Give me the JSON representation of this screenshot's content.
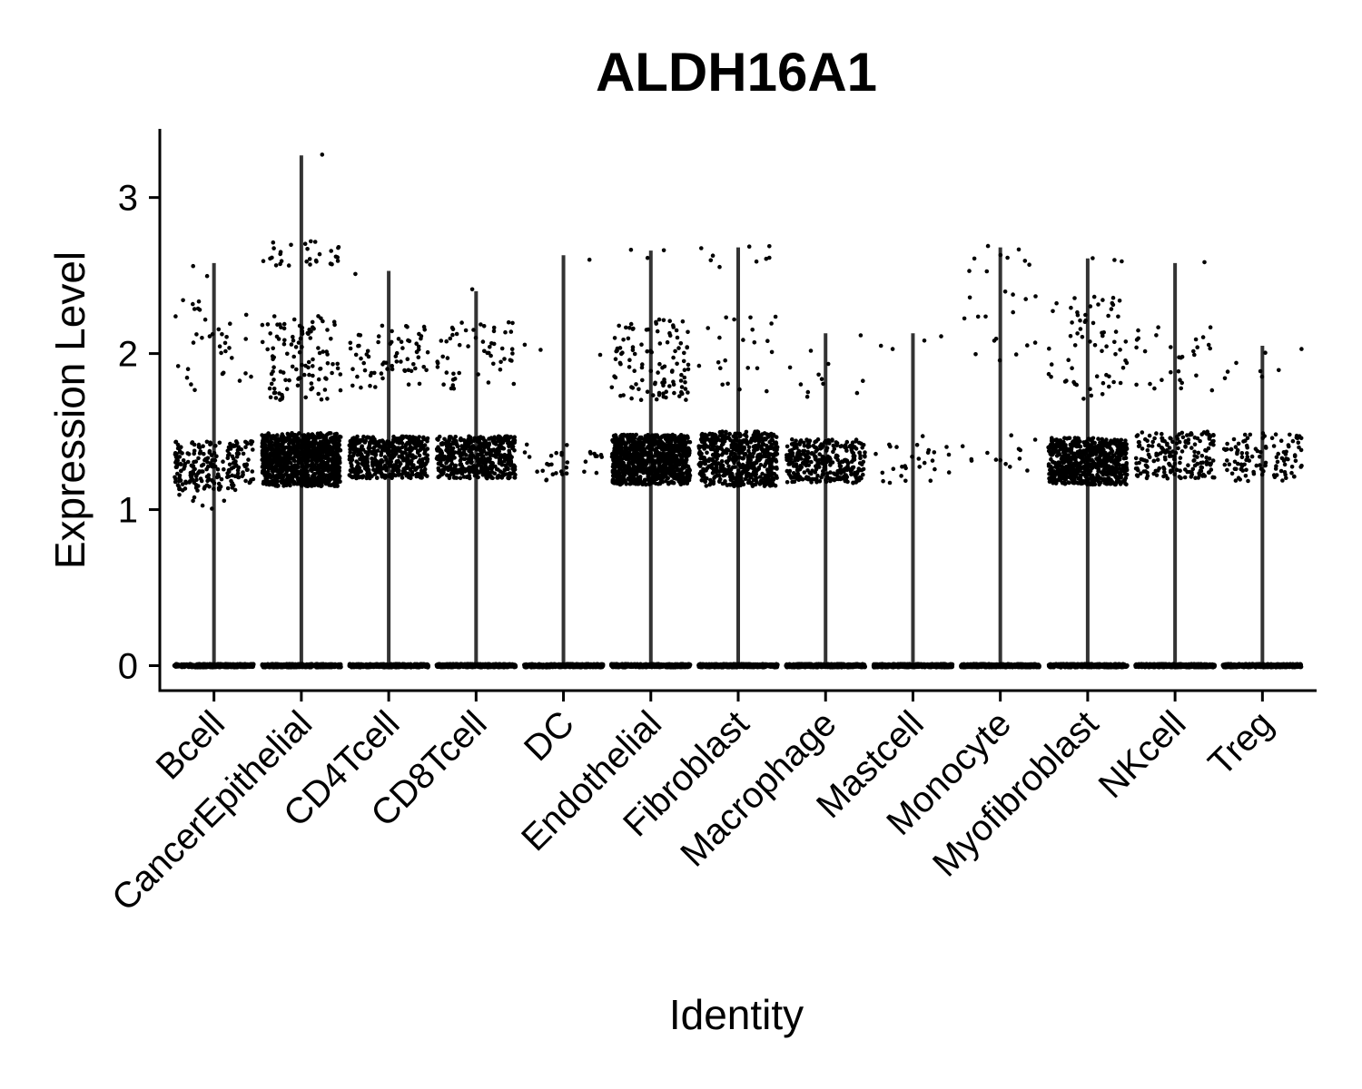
{
  "chart_data": {
    "type": "scatter",
    "subtype": "violin-jitter",
    "title": "ALDH16A1",
    "xlabel": "Identity",
    "ylabel": "Expression Level",
    "ylim": [
      -0.16,
      3.44
    ],
    "yticks": [
      0,
      1,
      2,
      3
    ],
    "grid": false,
    "legend": "none",
    "point_color": "#000000",
    "line_color": "#333333",
    "categories": [
      "Bcell",
      "CancerEpithelial",
      "CD4Tcell",
      "CD8Tcell",
      "DC",
      "Endothelial",
      "Fibroblast",
      "Macrophage",
      "Mastcell",
      "Monocyte",
      "Myofibroblast",
      "NKcell",
      "Treg"
    ],
    "series": [
      {
        "category": "Bcell",
        "max": 2.58,
        "zero_count": 400,
        "bands": [
          {
            "lo": 1.12,
            "hi": 1.44,
            "n": 220
          },
          {
            "lo": 0.96,
            "hi": 1.12,
            "n": 6
          },
          {
            "lo": 1.75,
            "hi": 2.3,
            "n": 32
          },
          {
            "lo": 2.3,
            "hi": 2.6,
            "n": 5
          }
        ]
      },
      {
        "category": "CancerEpithelial",
        "max": 3.27,
        "zero_count": 400,
        "bands": [
          {
            "lo": 1.15,
            "hi": 1.49,
            "n": 1000
          },
          {
            "lo": 1.7,
            "hi": 2.25,
            "n": 110
          },
          {
            "lo": 2.55,
            "hi": 2.72,
            "n": 30
          },
          {
            "lo": 3.26,
            "hi": 3.28,
            "n": 1
          }
        ]
      },
      {
        "category": "CD4Tcell",
        "max": 2.53,
        "zero_count": 400,
        "bands": [
          {
            "lo": 1.2,
            "hi": 1.47,
            "n": 500
          },
          {
            "lo": 1.78,
            "hi": 2.18,
            "n": 70
          },
          {
            "lo": 2.5,
            "hi": 2.54,
            "n": 1
          }
        ]
      },
      {
        "category": "CD8Tcell",
        "max": 2.4,
        "zero_count": 400,
        "bands": [
          {
            "lo": 1.2,
            "hi": 1.47,
            "n": 520
          },
          {
            "lo": 1.74,
            "hi": 2.2,
            "n": 55
          },
          {
            "lo": 2.38,
            "hi": 2.42,
            "n": 1
          }
        ]
      },
      {
        "category": "DC",
        "max": 2.63,
        "zero_count": 400,
        "bands": [
          {
            "lo": 1.18,
            "hi": 1.42,
            "n": 32
          },
          {
            "lo": 1.99,
            "hi": 2.15,
            "n": 3
          },
          {
            "lo": 2.6,
            "hi": 2.64,
            "n": 1
          }
        ]
      },
      {
        "category": "Endothelial",
        "max": 2.66,
        "zero_count": 400,
        "bands": [
          {
            "lo": 1.16,
            "hi": 1.48,
            "n": 950
          },
          {
            "lo": 1.7,
            "hi": 2.22,
            "n": 110
          },
          {
            "lo": 2.55,
            "hi": 2.67,
            "n": 3
          }
        ]
      },
      {
        "category": "Fibroblast",
        "max": 2.68,
        "zero_count": 400,
        "bands": [
          {
            "lo": 1.15,
            "hi": 1.5,
            "n": 600
          },
          {
            "lo": 1.72,
            "hi": 2.25,
            "n": 22
          },
          {
            "lo": 2.55,
            "hi": 2.69,
            "n": 9
          }
        ]
      },
      {
        "category": "Macrophage",
        "max": 2.13,
        "zero_count": 400,
        "bands": [
          {
            "lo": 1.17,
            "hi": 1.45,
            "n": 330
          },
          {
            "lo": 1.7,
            "hi": 2.15,
            "n": 12
          }
        ]
      },
      {
        "category": "Mastcell",
        "max": 2.13,
        "zero_count": 400,
        "bands": [
          {
            "lo": 1.17,
            "hi": 1.48,
            "n": 28
          },
          {
            "lo": 1.95,
            "hi": 2.13,
            "n": 4
          }
        ]
      },
      {
        "category": "Monocyte",
        "max": 2.68,
        "zero_count": 400,
        "bands": [
          {
            "lo": 1.25,
            "hi": 1.48,
            "n": 14
          },
          {
            "lo": 1.95,
            "hi": 2.4,
            "n": 16
          },
          {
            "lo": 2.5,
            "hi": 2.69,
            "n": 9
          }
        ]
      },
      {
        "category": "Myofibroblast",
        "max": 2.61,
        "zero_count": 400,
        "bands": [
          {
            "lo": 1.16,
            "hi": 1.46,
            "n": 700
          },
          {
            "lo": 1.7,
            "hi": 2.37,
            "n": 65
          },
          {
            "lo": 2.55,
            "hi": 2.63,
            "n": 3
          }
        ]
      },
      {
        "category": "NKcell",
        "max": 2.58,
        "zero_count": 400,
        "bands": [
          {
            "lo": 1.2,
            "hi": 1.5,
            "n": 190
          },
          {
            "lo": 1.76,
            "hi": 2.18,
            "n": 30
          },
          {
            "lo": 2.55,
            "hi": 2.59,
            "n": 1
          }
        ]
      },
      {
        "category": "Treg",
        "max": 2.05,
        "zero_count": 400,
        "bands": [
          {
            "lo": 1.18,
            "hi": 1.49,
            "n": 110
          },
          {
            "lo": 1.8,
            "hi": 2.05,
            "n": 8
          }
        ]
      }
    ]
  }
}
